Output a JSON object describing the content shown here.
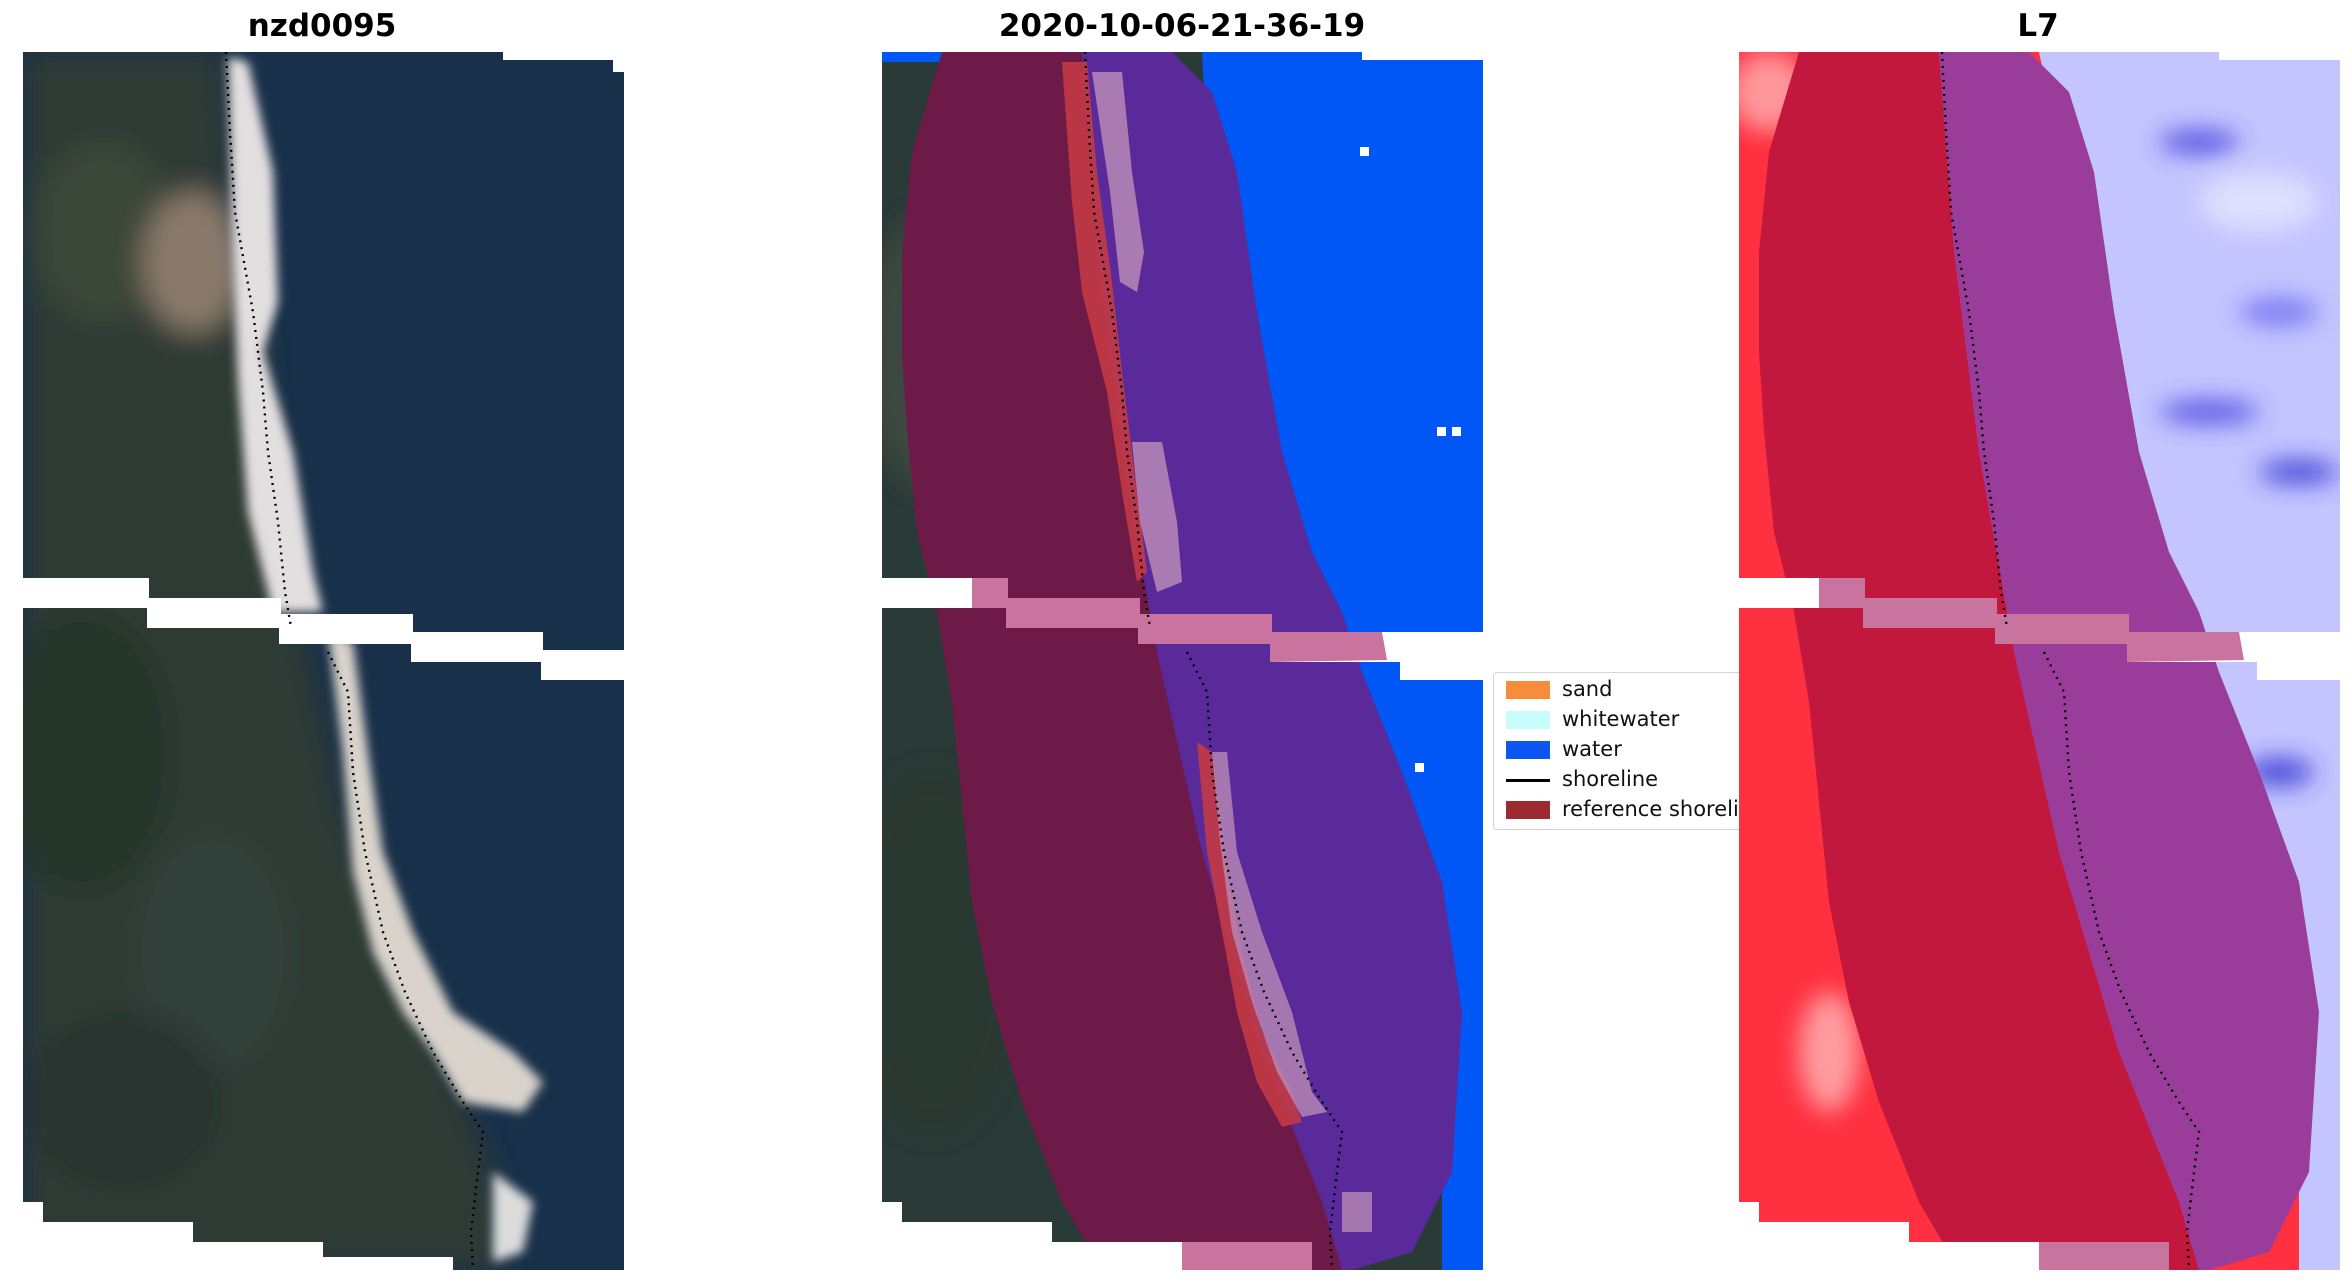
{
  "panels": [
    {
      "title": "nzd0095"
    },
    {
      "title": "2020-10-06-21-36-19"
    },
    {
      "title": "L7"
    }
  ],
  "legend": {
    "items": [
      {
        "label": "sand",
        "color": "#f58d3c",
        "kind": "patch"
      },
      {
        "label": "whitewater",
        "color": "#c8fbfb",
        "kind": "patch"
      },
      {
        "label": "water",
        "color": "#0b57f0",
        "kind": "patch"
      },
      {
        "label": "shoreline",
        "color": "#000000",
        "kind": "line"
      },
      {
        "label": "reference shoreline buffer",
        "color": "#9b2b30",
        "kind": "patch"
      }
    ]
  },
  "colors": {
    "ocean": "#18304a",
    "land": "#2c3a33",
    "beach": "#d8d2c8",
    "water_class": "#0057f5",
    "buffer_purple": "#5a2a9a",
    "buffer_maroon": "#741c44",
    "index_red": "#ff2d3a",
    "index_blue": "#c9c9ff"
  }
}
